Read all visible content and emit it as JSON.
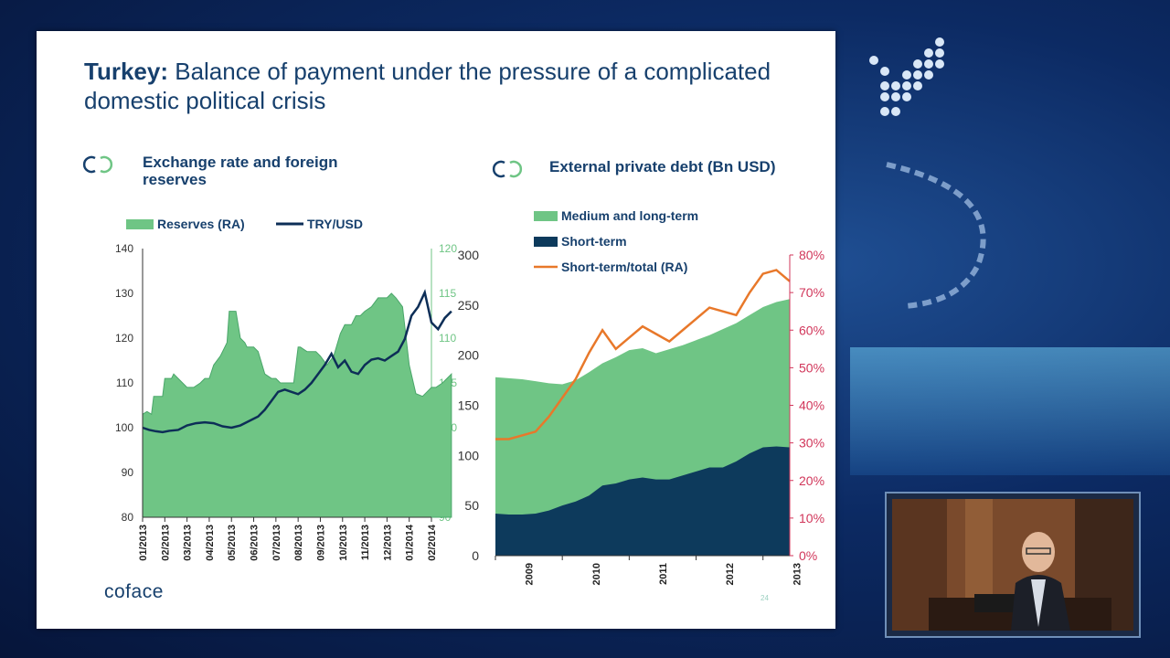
{
  "slide": {
    "title_bold": "Turkey:",
    "title_rest": " Balance of payment under the pressure of a complicated domestic political crisis",
    "brand": "coface",
    "page_number": "24"
  },
  "colors": {
    "reserves_fill": "#6fc585",
    "reserves_line": "#4aa66a",
    "try_usd_line": "#0d2e57",
    "short_term_fill": "#0d3a5c",
    "ratio_line": "#e8782a",
    "right_axis_red": "#d1365a",
    "right_axis_green": "#6fc585"
  },
  "chart_data": [
    {
      "type": "area",
      "title_line1": "Exchange rate and foreign",
      "title_line2": "reserves",
      "legend": [
        "Reserves (RA)",
        "TRY/USD"
      ],
      "legend_placement": "top",
      "x_ticks": [
        "01/2013",
        "02/2013",
        "03/2013",
        "04/2013",
        "05/2013",
        "06/2013",
        "07/2013",
        "08/2013",
        "09/2013",
        "10/2013",
        "11/2013",
        "12/2013",
        "01/2014",
        "02/2014"
      ],
      "ylim_left": [
        80,
        140
      ],
      "yticks_left": [
        "80",
        "90",
        "100",
        "110",
        "120",
        "130",
        "140"
      ],
      "ylim_right": [
        90,
        120
      ],
      "yticks_right": [
        "90",
        "95",
        "100",
        "105",
        "110",
        "115",
        "120"
      ],
      "series": [
        {
          "name": "Reserves (RA)",
          "axis": "right",
          "x": [
            0,
            0.2,
            0.4,
            0.5,
            0.9,
            1.0,
            1.3,
            1.4,
            1.6,
            1.8,
            2.0,
            2.3,
            2.6,
            2.8,
            3.0,
            3.2,
            3.5,
            3.8,
            3.9,
            4.2,
            4.4,
            4.6,
            4.7,
            5.0,
            5.2,
            5.5,
            5.8,
            6.0,
            6.2,
            6.5,
            6.8,
            7.0,
            7.1,
            7.4,
            7.6,
            7.8,
            8.0,
            8.3,
            8.6,
            8.9,
            9.1,
            9.4,
            9.6,
            9.8,
            10.0,
            10.3,
            10.6,
            11.0,
            11.2,
            11.4,
            11.7,
            12.0,
            12.3,
            12.6,
            12.8,
            13.0,
            13.2,
            13.5,
            13.7,
            13.9
          ],
          "values": [
            101.5,
            101.8,
            101.5,
            103.5,
            103.5,
            105.5,
            105.5,
            106,
            105.5,
            105,
            104.5,
            104.5,
            105,
            105.5,
            105.5,
            107,
            108,
            109.5,
            113,
            113,
            110,
            109.5,
            109,
            109,
            108.5,
            106,
            105.5,
            105.5,
            105,
            105,
            105,
            109,
            109,
            108.5,
            108.5,
            108.5,
            108,
            107,
            108,
            110.5,
            111.5,
            111.5,
            112.5,
            112.5,
            113,
            113.5,
            114.5,
            114.5,
            115,
            114.5,
            113.5,
            107,
            103.8,
            103.5,
            104,
            104.5,
            104.5,
            105,
            105.5,
            106
          ]
        },
        {
          "name": "TRY/USD",
          "axis": "left",
          "x": [
            0,
            0.3,
            0.6,
            0.9,
            1.2,
            1.6,
            2.0,
            2.4,
            2.8,
            3.2,
            3.6,
            4.0,
            4.4,
            4.8,
            5.2,
            5.5,
            5.8,
            6.1,
            6.4,
            6.7,
            7.0,
            7.3,
            7.6,
            7.9,
            8.2,
            8.5,
            8.8,
            9.1,
            9.4,
            9.7,
            10.0,
            10.3,
            10.6,
            10.9,
            11.2,
            11.5,
            11.8,
            12.1,
            12.4,
            12.7,
            13.0,
            13.3,
            13.6,
            13.9
          ],
          "values": [
            100,
            99.5,
            99.2,
            99,
            99.3,
            99.5,
            100.5,
            101,
            101.2,
            101,
            100.3,
            100,
            100.5,
            101.5,
            102.5,
            104,
            106,
            108,
            108.5,
            108,
            107.5,
            108.5,
            110,
            112,
            114,
            116.5,
            113.5,
            115,
            112.5,
            112,
            114,
            115.2,
            115.5,
            115,
            116,
            117,
            119.8,
            125,
            127,
            130.2,
            123.5,
            122,
            124.5,
            126
          ]
        }
      ]
    },
    {
      "type": "area",
      "title": "External private debt (Bn USD)",
      "legend": [
        "Medium and long-term",
        "Short-term",
        "Short-term/total (RA)"
      ],
      "legend_placement": "top-left",
      "x_ticks": [
        "2009",
        "2010",
        "2011",
        "2012",
        "2013"
      ],
      "xlim": [
        0,
        4.4
      ],
      "ylim_left": [
        0,
        300
      ],
      "yticks_left": [
        "0",
        "50",
        "100",
        "150",
        "200",
        "250",
        "300"
      ],
      "ylim_right": [
        0,
        80
      ],
      "yticks_right": [
        "0%",
        "10%",
        "20%",
        "30%",
        "40%",
        "50%",
        "60%",
        "70%",
        "80%"
      ],
      "series": [
        {
          "name": "Short-term",
          "x": [
            0,
            0.2,
            0.4,
            0.6,
            0.8,
            1.0,
            1.2,
            1.4,
            1.6,
            1.8,
            2.0,
            2.2,
            2.4,
            2.6,
            2.8,
            3.0,
            3.2,
            3.4,
            3.6,
            3.8,
            4.0,
            4.2,
            4.4
          ],
          "values": [
            42,
            41,
            41,
            42,
            45,
            50,
            54,
            60,
            70,
            72,
            76,
            78,
            76,
            76,
            80,
            84,
            88,
            88,
            94,
            102,
            108,
            109,
            108
          ]
        },
        {
          "name": "Medium and long-term (total outstanding)",
          "x": [
            0,
            0.2,
            0.4,
            0.6,
            0.8,
            1.0,
            1.2,
            1.4,
            1.6,
            1.8,
            2.0,
            2.2,
            2.4,
            2.6,
            2.8,
            3.0,
            3.2,
            3.4,
            3.6,
            3.8,
            4.0,
            4.2,
            4.4
          ],
          "values": [
            178,
            177,
            176,
            174,
            172,
            171,
            175,
            183,
            192,
            198,
            205,
            207,
            202,
            206,
            210,
            215,
            220,
            226,
            232,
            240,
            248,
            253,
            256
          ]
        },
        {
          "name": "Short-term/total (RA)",
          "x": [
            0,
            0.2,
            0.4,
            0.6,
            0.8,
            1.0,
            1.2,
            1.4,
            1.6,
            1.8,
            2.0,
            2.2,
            2.4,
            2.6,
            2.8,
            3.0,
            3.2,
            3.4,
            3.6,
            3.8,
            4.0,
            4.2,
            4.4
          ],
          "values": [
            31,
            31,
            32,
            33,
            37,
            42,
            47,
            54,
            60,
            55,
            58,
            61,
            59,
            57,
            60,
            63,
            66,
            65,
            64,
            70,
            75,
            76,
            73
          ]
        }
      ]
    }
  ]
}
